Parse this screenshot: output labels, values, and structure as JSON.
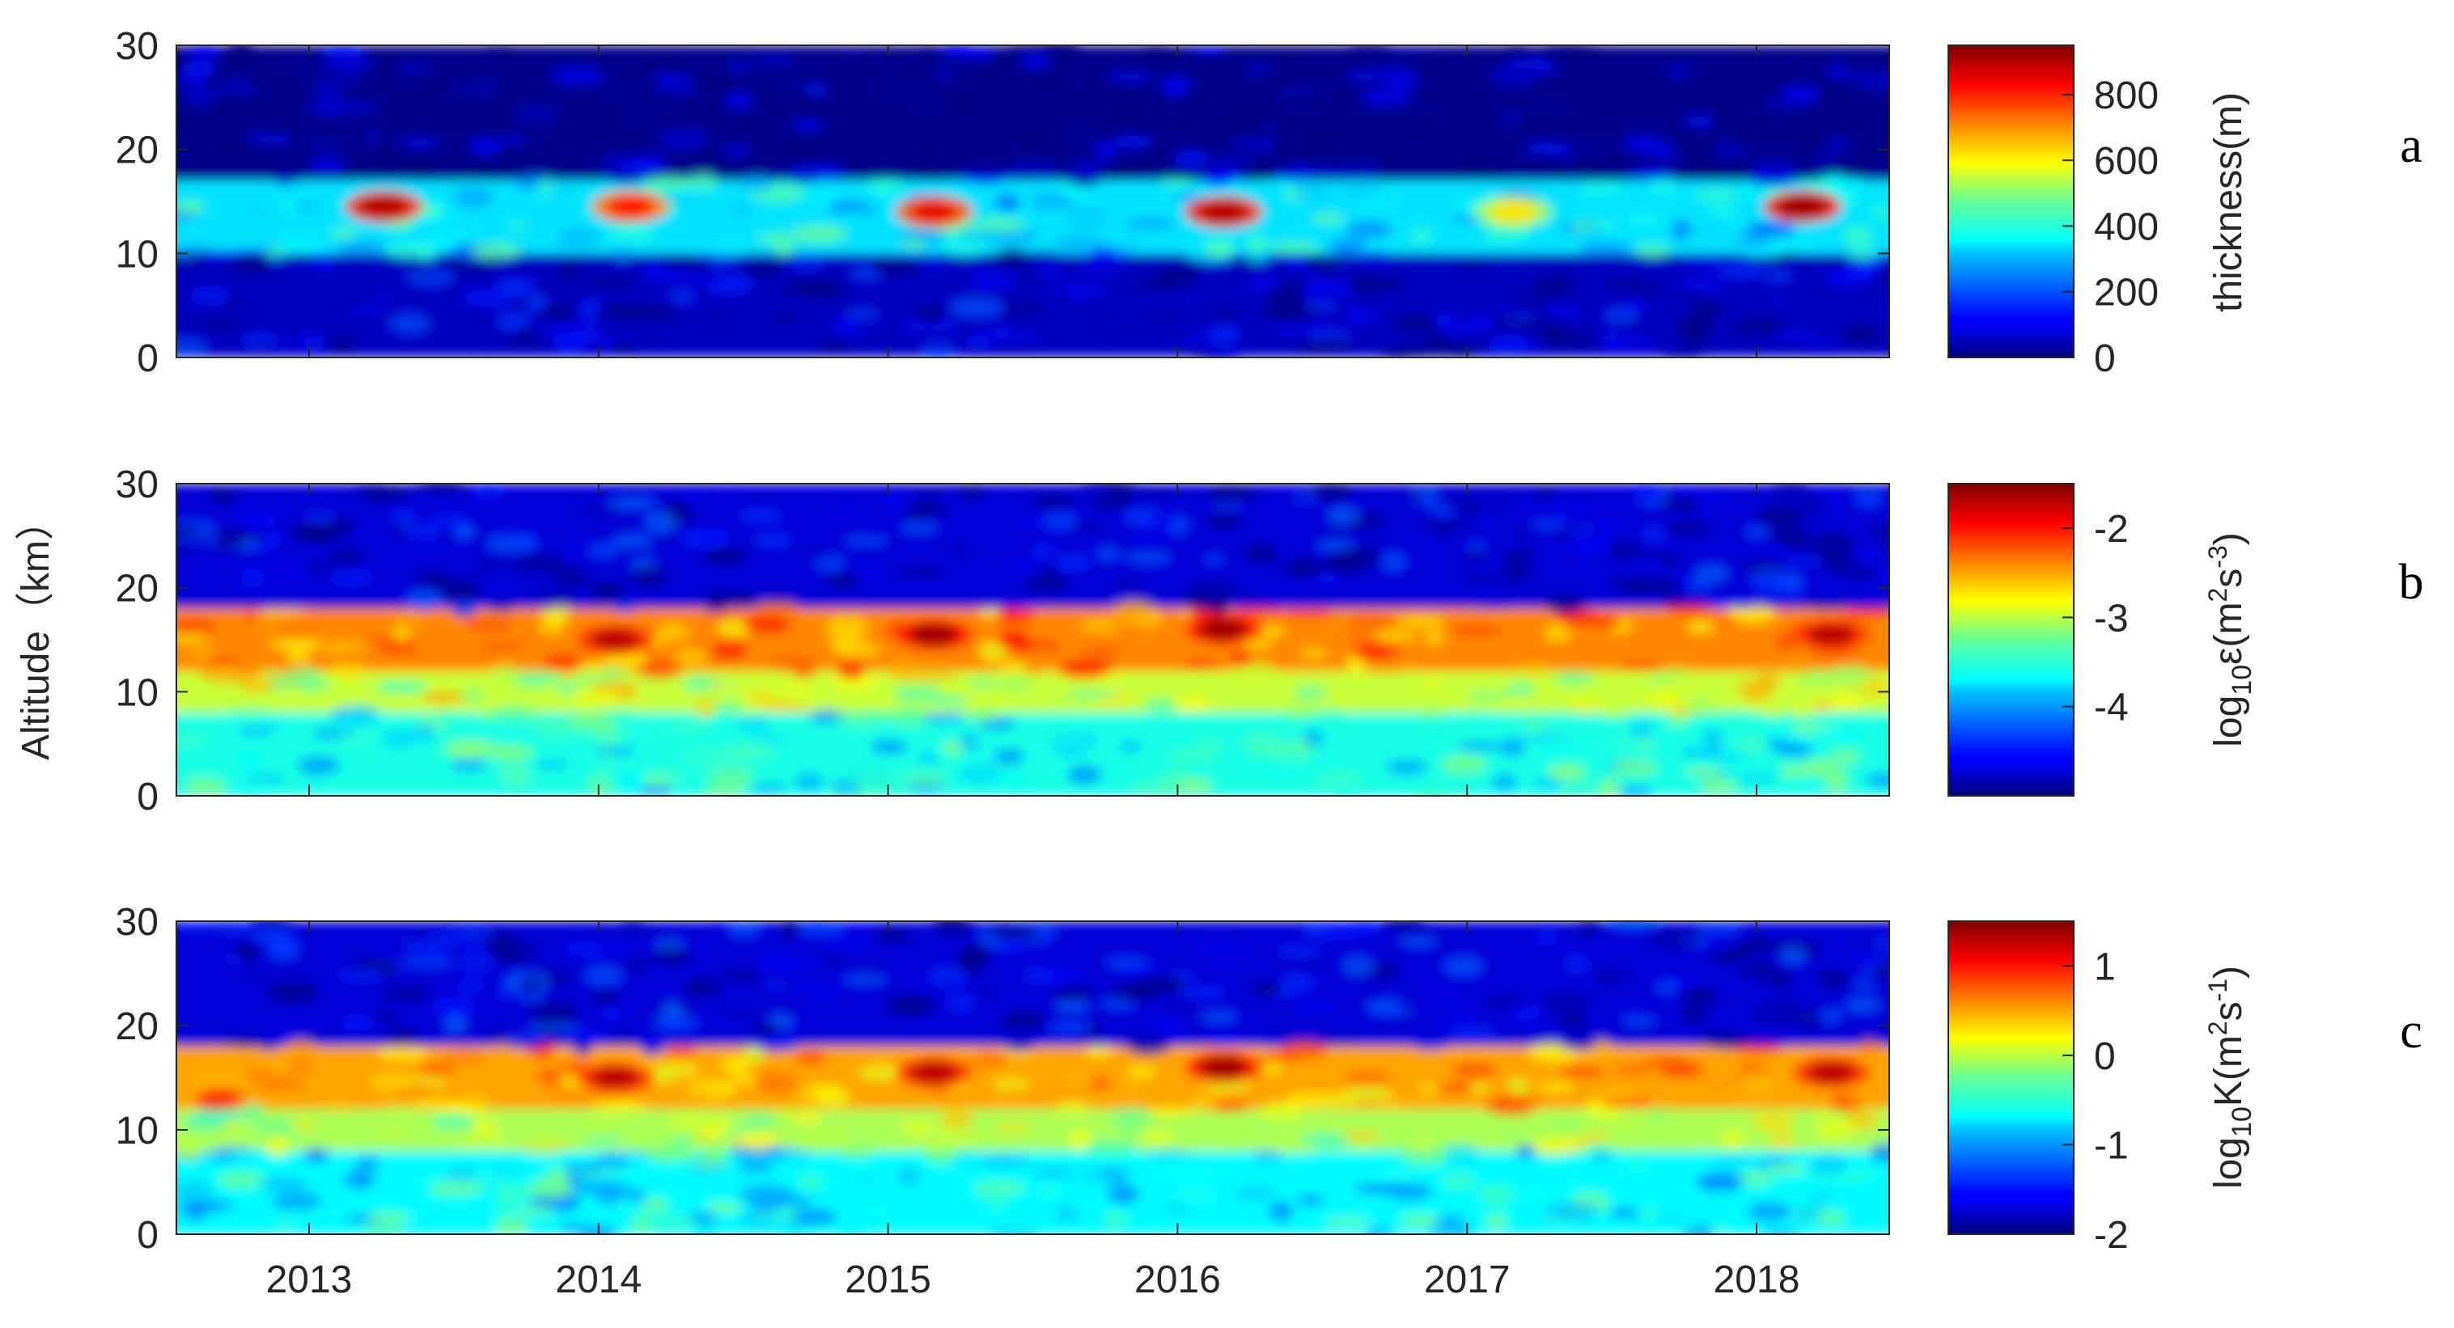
{
  "chart_data": [
    {
      "type": "heatmap",
      "panel": "a",
      "ylabel": "Altitude（km）",
      "colorbar_label": "thickness(m)",
      "x": {
        "type": "time",
        "range": [
          "2012-08",
          "2018-07"
        ],
        "ticks": [
          "2013",
          "2014",
          "2015",
          "2016",
          "2017",
          "2018"
        ]
      },
      "y": {
        "range": [
          0,
          30
        ],
        "ticks": [
          "0",
          "10",
          "20",
          "30"
        ]
      },
      "colorbar": {
        "range": [
          0,
          950
        ],
        "ticks": [
          "0",
          "200",
          "400",
          "600",
          "800"
        ],
        "colormap": "jet"
      },
      "bands": [
        {
          "altitude_range": [
            0,
            10
          ],
          "value": 60
        },
        {
          "altitude_range": [
            10,
            17
          ],
          "value": 330
        },
        {
          "altitude_range": [
            17,
            30
          ],
          "value": 10
        }
      ],
      "hotspots": [
        {
          "date": "2013.3",
          "altitude": 14.5,
          "value": 900
        },
        {
          "date": "2014.15",
          "altitude": 14.5,
          "value": 820
        },
        {
          "date": "2015.2",
          "altitude": 14,
          "value": 850
        },
        {
          "date": "2016.2",
          "altitude": 14,
          "value": 900
        },
        {
          "date": "2017.2",
          "altitude": 14,
          "value": 620
        },
        {
          "date": "2018.2",
          "altitude": 14.5,
          "value": 920
        }
      ]
    },
    {
      "type": "heatmap",
      "panel": "b",
      "ylabel": "Altitude（km）",
      "colorbar_label": "log10ε(m2s-3)",
      "x": {
        "type": "time",
        "range": [
          "2012-08",
          "2018-07"
        ],
        "ticks": [
          "2013",
          "2014",
          "2015",
          "2016",
          "2017",
          "2018"
        ]
      },
      "y": {
        "range": [
          0,
          30
        ],
        "ticks": [
          "0",
          "10",
          "20",
          "30"
        ]
      },
      "colorbar": {
        "range": [
          -5,
          -1.5
        ],
        "ticks": [
          "-4",
          "-3",
          "-2"
        ],
        "colormap": "jet"
      },
      "bands": [
        {
          "altitude_range": [
            0,
            8
          ],
          "value": -3.6
        },
        {
          "altitude_range": [
            8,
            12
          ],
          "value": -3.0
        },
        {
          "altitude_range": [
            12,
            18
          ],
          "value": -2.4
        },
        {
          "altitude_range": [
            18,
            30
          ],
          "value": -4.7
        }
      ],
      "hotspots": [
        {
          "date": "2014.1",
          "altitude": 15,
          "value": -1.7
        },
        {
          "date": "2015.2",
          "altitude": 15.5,
          "value": -1.6
        },
        {
          "date": "2016.2",
          "altitude": 16,
          "value": -1.6
        },
        {
          "date": "2018.3",
          "altitude": 15.5,
          "value": -1.7
        }
      ]
    },
    {
      "type": "heatmap",
      "panel": "c",
      "ylabel": "Altitude（km）",
      "colorbar_label": "log10K(m2s-1)",
      "x": {
        "type": "time",
        "range": [
          "2012-08",
          "2018-07"
        ],
        "ticks": [
          "2013",
          "2014",
          "2015",
          "2016",
          "2017",
          "2018"
        ]
      },
      "y": {
        "range": [
          0,
          30
        ],
        "ticks": [
          "0",
          "10",
          "20",
          "30"
        ]
      },
      "colorbar": {
        "range": [
          -2,
          1.5
        ],
        "ticks": [
          "-2",
          "-1",
          "0",
          "1"
        ],
        "colormap": "jet"
      },
      "bands": [
        {
          "altitude_range": [
            0,
            8
          ],
          "value": -0.7
        },
        {
          "altitude_range": [
            8,
            12
          ],
          "value": -0.1
        },
        {
          "altitude_range": [
            12,
            18
          ],
          "value": 0.5
        },
        {
          "altitude_range": [
            18,
            30
          ],
          "value": -1.7
        }
      ],
      "hotspots": [
        {
          "date": "2014.1",
          "altitude": 15,
          "value": 1.3
        },
        {
          "date": "2015.2",
          "altitude": 15.5,
          "value": 1.3
        },
        {
          "date": "2016.2",
          "altitude": 16,
          "value": 1.4
        },
        {
          "date": "2018.3",
          "altitude": 15.5,
          "value": 1.3
        }
      ]
    }
  ],
  "axis_label": "Altitude（km）",
  "panel_letters": [
    "a",
    "b",
    "c"
  ],
  "x_tick_labels": [
    "2013",
    "2014",
    "2015",
    "2016",
    "2017",
    "2018"
  ],
  "colorbar_a": {
    "base": "thickness(m)"
  },
  "colorbar_b": {
    "prefix": "log",
    "sub": "10",
    "sym": "ε(m",
    "sup1": "2",
    "mid": "s",
    "sup2": "-3",
    "end": ")"
  },
  "colorbar_c": {
    "prefix": "log",
    "sub": "10",
    "sym": "K(m",
    "sup1": "2",
    "mid": "s",
    "sup2": "-1",
    "end": ")"
  }
}
